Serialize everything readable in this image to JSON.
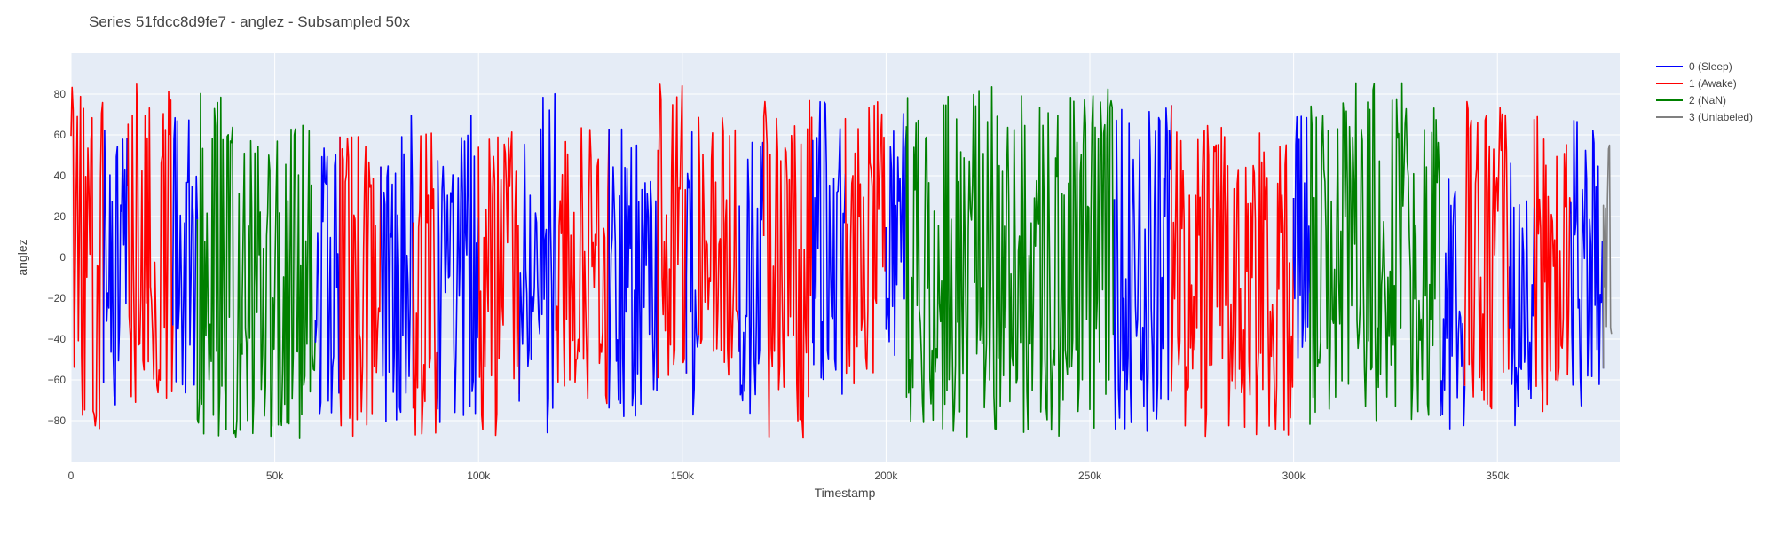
{
  "chart_data": {
    "type": "line",
    "title": "Series 51fdcc8d9fe7 - anglez - Subsampled 50x",
    "xlabel": "Timestamp",
    "ylabel": "anglez",
    "xlim": [
      0,
      380000
    ],
    "ylim": [
      -100,
      100
    ],
    "x_ticks": [
      0,
      50000,
      100000,
      150000,
      200000,
      250000,
      300000,
      350000
    ],
    "x_tick_labels": [
      "0",
      "50k",
      "100k",
      "150k",
      "200k",
      "250k",
      "300k",
      "350k"
    ],
    "y_ticks": [
      -80,
      -60,
      -40,
      -20,
      0,
      20,
      40,
      60,
      80
    ],
    "y_tick_labels": [
      "−80",
      "−60",
      "−40",
      "−20",
      "0",
      "20",
      "40",
      "60",
      "80"
    ],
    "grid": true,
    "legend_position": "top-right",
    "series": [
      {
        "name": "0 (Sleep)",
        "color": "#0000ff"
      },
      {
        "name": "1 (Awake)",
        "color": "#ff0000"
      },
      {
        "name": "2 (NaN)",
        "color": "#008000"
      },
      {
        "name": "3 (Unlabeled)",
        "color": "#808080"
      }
    ],
    "segments": [
      {
        "series": 1,
        "x_start": 0,
        "x_end": 8000,
        "y_min": -88,
        "y_max": 89
      },
      {
        "series": 0,
        "x_start": 8000,
        "x_end": 14000,
        "y_min": -82,
        "y_max": 68
      },
      {
        "series": 1,
        "x_start": 14000,
        "x_end": 25000,
        "y_min": -74,
        "y_max": 88
      },
      {
        "series": 0,
        "x_start": 25000,
        "x_end": 31000,
        "y_min": -82,
        "y_max": 78
      },
      {
        "series": 2,
        "x_start": 31000,
        "x_end": 42000,
        "y_min": -89,
        "y_max": 82
      },
      {
        "series": 2,
        "x_start": 42000,
        "x_end": 60000,
        "y_min": -89,
        "y_max": 65
      },
      {
        "series": 0,
        "x_start": 60000,
        "x_end": 66000,
        "y_min": -80,
        "y_max": 63
      },
      {
        "series": 1,
        "x_start": 66000,
        "x_end": 76000,
        "y_min": -88,
        "y_max": 61
      },
      {
        "series": 0,
        "x_start": 76000,
        "x_end": 84000,
        "y_min": -86,
        "y_max": 70
      },
      {
        "series": 1,
        "x_start": 84000,
        "x_end": 90000,
        "y_min": -88,
        "y_max": 66
      },
      {
        "series": 0,
        "x_start": 90000,
        "x_end": 100000,
        "y_min": -88,
        "y_max": 72
      },
      {
        "series": 1,
        "x_start": 100000,
        "x_end": 110000,
        "y_min": -89,
        "y_max": 62
      },
      {
        "series": 0,
        "x_start": 110000,
        "x_end": 119000,
        "y_min": -86,
        "y_max": 86
      },
      {
        "series": 1,
        "x_start": 119000,
        "x_end": 132000,
        "y_min": -72,
        "y_max": 64
      },
      {
        "series": 0,
        "x_start": 132000,
        "x_end": 144000,
        "y_min": -84,
        "y_max": 66
      },
      {
        "series": 1,
        "x_start": 144000,
        "x_end": 151000,
        "y_min": -60,
        "y_max": 85
      },
      {
        "series": 0,
        "x_start": 151000,
        "x_end": 154000,
        "y_min": -86,
        "y_max": 74
      },
      {
        "series": 1,
        "x_start": 154000,
        "x_end": 164000,
        "y_min": -64,
        "y_max": 70
      },
      {
        "series": 0,
        "x_start": 164000,
        "x_end": 170000,
        "y_min": -84,
        "y_max": 58
      },
      {
        "series": 1,
        "x_start": 170000,
        "x_end": 182000,
        "y_min": -89,
        "y_max": 84
      },
      {
        "series": 0,
        "x_start": 182000,
        "x_end": 190000,
        "y_min": -68,
        "y_max": 86
      },
      {
        "series": 1,
        "x_start": 190000,
        "x_end": 200000,
        "y_min": -66,
        "y_max": 80
      },
      {
        "series": 0,
        "x_start": 200000,
        "x_end": 205000,
        "y_min": -66,
        "y_max": 80
      },
      {
        "series": 2,
        "x_start": 205000,
        "x_end": 256000,
        "y_min": -89,
        "y_max": 84
      },
      {
        "series": 0,
        "x_start": 256000,
        "x_end": 270000,
        "y_min": -87,
        "y_max": 78
      },
      {
        "series": 1,
        "x_start": 270000,
        "x_end": 300000,
        "y_min": -88,
        "y_max": 65
      },
      {
        "series": 0,
        "x_start": 300000,
        "x_end": 304000,
        "y_min": -80,
        "y_max": 74
      },
      {
        "series": 2,
        "x_start": 304000,
        "x_end": 336000,
        "y_min": -82,
        "y_max": 87
      },
      {
        "series": 0,
        "x_start": 336000,
        "x_end": 342000,
        "y_min": -86,
        "y_max": 54
      },
      {
        "series": 1,
        "x_start": 342000,
        "x_end": 353000,
        "y_min": -75,
        "y_max": 84
      },
      {
        "series": 0,
        "x_start": 353000,
        "x_end": 359000,
        "y_min": -86,
        "y_max": 54
      },
      {
        "series": 1,
        "x_start": 359000,
        "x_end": 368000,
        "y_min": -76,
        "y_max": 73
      },
      {
        "series": 0,
        "x_start": 368000,
        "x_end": 376000,
        "y_min": -75,
        "y_max": 76
      },
      {
        "series": 3,
        "x_start": 376000,
        "x_end": 378000,
        "y_min": -40,
        "y_max": 57
      }
    ]
  }
}
